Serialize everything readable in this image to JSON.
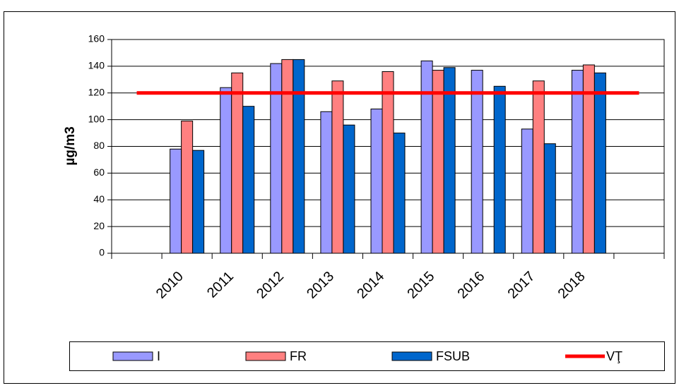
{
  "chart_data": {
    "type": "bar",
    "ylabel": "µg/m3",
    "categories": [
      null,
      "2010",
      "2011",
      "2012",
      "2013",
      "2014",
      "2015",
      "2016",
      "2017",
      "2018",
      null
    ],
    "series": [
      {
        "name": "I",
        "color": "#9999ff",
        "values": [
          null,
          78,
          124,
          142,
          106,
          108,
          144,
          137,
          93,
          137,
          null
        ]
      },
      {
        "name": "FR",
        "color": "#ff8080",
        "values": [
          null,
          99,
          135,
          145,
          129,
          136,
          137,
          null,
          129,
          141,
          null
        ]
      },
      {
        "name": "FSUB",
        "color": "#0066cc",
        "values": [
          null,
          77,
          110,
          145,
          96,
          90,
          139,
          125,
          82,
          135,
          null
        ]
      },
      {
        "name": "VŢ",
        "color": "#ff0000",
        "type": "line",
        "values": [
          120,
          120,
          120,
          120,
          120,
          120,
          120,
          120,
          120,
          120,
          120
        ]
      }
    ],
    "ylim": [
      0,
      160
    ],
    "yticks": [
      0,
      20,
      40,
      60,
      80,
      100,
      120,
      140,
      160
    ],
    "grid": true,
    "legend": "bottom"
  }
}
